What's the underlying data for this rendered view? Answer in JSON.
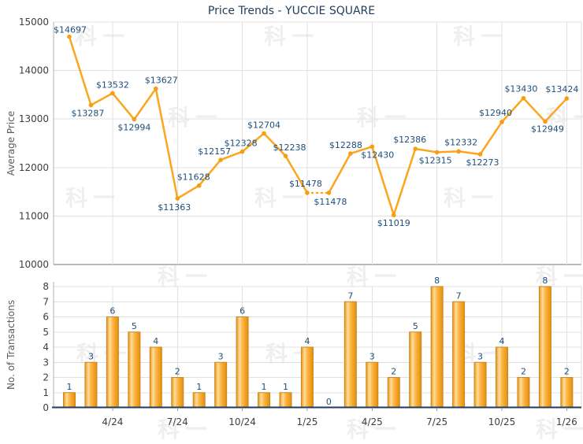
{
  "title": "Price Trends - YUCCIE SQUARE",
  "watermark_text": "科一",
  "colors": {
    "title_text": "#1e3c59",
    "point_label_text": "#1d4e79",
    "line": "#fca51e",
    "marker": "#f79d14",
    "bar_border": "#cd861b",
    "bar_gradient": [
      "#e9991e",
      "#f3ae44",
      "#ffdf9f",
      "#fbbe5b",
      "#f6a628",
      "#e08f15"
    ],
    "grid": "#e0e0e0",
    "axis_gray": "#b0b0b0",
    "axis_gray_bottom": "#b8b8b8",
    "axis_navy": "#1f3a5f",
    "tick_text": "#3e3e3e",
    "axis_title_text": "#5a5a5a",
    "watermark": "#f0eff0",
    "minor_tick": "#999999"
  },
  "chart_data": [
    {
      "type": "line",
      "title": "Price Trends - YUCCIE SQUARE",
      "ylabel": "Average Price",
      "ylim": [
        10000,
        15000
      ],
      "y_ticks": [
        15000,
        14000,
        13000,
        12000,
        11000,
        10000
      ],
      "grid": true,
      "legend_position": "none",
      "values": [
        14697,
        13287,
        13532,
        12994,
        13627,
        11363,
        11628,
        12157,
        12328,
        12704,
        12238,
        11478,
        11478,
        12288,
        12430,
        11019,
        12386,
        12315,
        12332,
        12273,
        12940,
        13430,
        12949,
        13424
      ],
      "point_labels": [
        "$14697",
        "$13287",
        "$13532",
        "$12994",
        "$13627",
        "$11363",
        "$11628",
        "$12157",
        "$12328",
        "$12704",
        "$12238",
        "$11478",
        "$11478",
        "$12288",
        "$12430",
        "$11019",
        "$12386",
        "$12315",
        "$12332",
        "$12273",
        "$12940",
        "$13430",
        "$12949",
        "$13424"
      ],
      "dotted_segment_between_indices": [
        11,
        12
      ],
      "x_tick_labels": [
        {
          "index": 2,
          "label": "4/24"
        },
        {
          "index": 5,
          "label": "7/24"
        },
        {
          "index": 8,
          "label": "10/24"
        },
        {
          "index": 11,
          "label": "1/25"
        },
        {
          "index": 14,
          "label": "4/25"
        },
        {
          "index": 17,
          "label": "7/25"
        },
        {
          "index": 20,
          "label": "10/25"
        },
        {
          "index": 23,
          "label": "1/26"
        }
      ]
    },
    {
      "type": "bar",
      "ylabel": "No. of Transactions",
      "ylim": [
        0,
        8
      ],
      "y_ticks": [
        8,
        7,
        6,
        5,
        4,
        3,
        2,
        1,
        0
      ],
      "grid": true,
      "legend_position": "none",
      "values": [
        1,
        3,
        6,
        5,
        4,
        2,
        1,
        3,
        6,
        1,
        1,
        4,
        0,
        7,
        3,
        2,
        5,
        8,
        7,
        3,
        4,
        2,
        8,
        2
      ],
      "bar_labels": [
        "1",
        "3",
        "6",
        "5",
        "4",
        "2",
        "1",
        "3",
        "6",
        "1",
        "1",
        "4",
        "0",
        "7",
        "3",
        "2",
        "5",
        "8",
        "7",
        "3",
        "4",
        "2",
        "8",
        "2"
      ],
      "x_tick_labels": [
        {
          "index": 2,
          "label": "4/24"
        },
        {
          "index": 5,
          "label": "7/24"
        },
        {
          "index": 8,
          "label": "10/24"
        },
        {
          "index": 11,
          "label": "1/25"
        },
        {
          "index": 14,
          "label": "4/25"
        },
        {
          "index": 17,
          "label": "7/25"
        },
        {
          "index": 20,
          "label": "10/25"
        },
        {
          "index": 23,
          "label": "1/26"
        }
      ]
    }
  ]
}
